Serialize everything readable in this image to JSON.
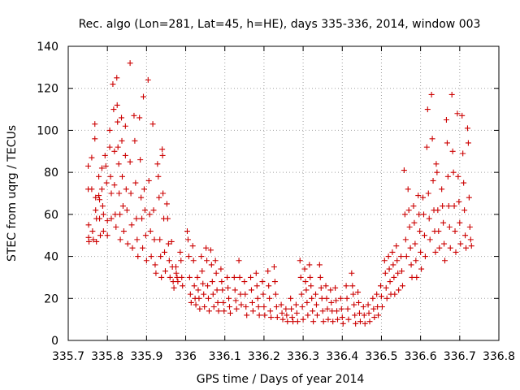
{
  "chart_data": {
    "type": "scatter",
    "title": "Rec. algo (Lon=281, Lat=45, h=HE), days 335-336, 2014, window 003",
    "xlabel": "GPS time / Days of year 2014",
    "ylabel": "STEC from uqrg / TECUs",
    "xlim": [
      335.7,
      336.8
    ],
    "ylim": [
      0,
      140
    ],
    "xticks": [
      "335.7",
      "335.8",
      "335.9",
      "336",
      "336.1",
      "336.2",
      "336.3",
      "336.4",
      "336.5",
      "336.6",
      "336.7",
      "336.8"
    ],
    "yticks": [
      "0",
      "20",
      "40",
      "60",
      "80",
      "100",
      "120",
      "140"
    ],
    "grid": true,
    "marker": "+",
    "color": "#cc0000",
    "points": [
      [
        335.751,
        83
      ],
      [
        335.751,
        72
      ],
      [
        335.752,
        55
      ],
      [
        335.752,
        49
      ],
      [
        335.753,
        47
      ],
      [
        335.76,
        87
      ],
      [
        335.76,
        72
      ],
      [
        335.762,
        52
      ],
      [
        335.764,
        48
      ],
      [
        335.768,
        103
      ],
      [
        335.768,
        96
      ],
      [
        335.77,
        68
      ],
      [
        335.77,
        62
      ],
      [
        335.772,
        58
      ],
      [
        335.772,
        47
      ],
      [
        335.778,
        78
      ],
      [
        335.778,
        69
      ],
      [
        335.78,
        67
      ],
      [
        335.78,
        58
      ],
      [
        335.782,
        50
      ],
      [
        335.786,
        82
      ],
      [
        335.786,
        72
      ],
      [
        335.788,
        64
      ],
      [
        335.79,
        60
      ],
      [
        335.79,
        52
      ],
      [
        335.794,
        88
      ],
      [
        335.796,
        83
      ],
      [
        335.798,
        75
      ],
      [
        335.8,
        57
      ],
      [
        335.8,
        50
      ],
      [
        335.806,
        100
      ],
      [
        335.806,
        92
      ],
      [
        335.808,
        78
      ],
      [
        335.81,
        70
      ],
      [
        335.81,
        58
      ],
      [
        335.814,
        122
      ],
      [
        335.816,
        110
      ],
      [
        335.818,
        90
      ],
      [
        335.818,
        74
      ],
      [
        335.82,
        60
      ],
      [
        335.822,
        54
      ],
      [
        335.824,
        125
      ],
      [
        335.825,
        112
      ],
      [
        335.826,
        104
      ],
      [
        335.827,
        92
      ],
      [
        335.829,
        84
      ],
      [
        335.83,
        70
      ],
      [
        335.832,
        60
      ],
      [
        335.833,
        48
      ],
      [
        335.836,
        106
      ],
      [
        335.837,
        95
      ],
      [
        335.838,
        78
      ],
      [
        335.84,
        64
      ],
      [
        335.842,
        52
      ],
      [
        335.846,
        102
      ],
      [
        335.846,
        88
      ],
      [
        335.848,
        72
      ],
      [
        335.85,
        62
      ],
      [
        335.852,
        46
      ],
      [
        335.858,
        132
      ],
      [
        335.858,
        85
      ],
      [
        335.86,
        70
      ],
      [
        335.862,
        55
      ],
      [
        335.864,
        44
      ],
      [
        335.868,
        107
      ],
      [
        335.87,
        95
      ],
      [
        335.872,
        75
      ],
      [
        335.874,
        58
      ],
      [
        335.876,
        48
      ],
      [
        335.878,
        40
      ],
      [
        335.882,
        106
      ],
      [
        335.884,
        86
      ],
      [
        335.886,
        68
      ],
      [
        335.888,
        58
      ],
      [
        335.89,
        44
      ],
      [
        335.892,
        116
      ],
      [
        335.894,
        72
      ],
      [
        335.896,
        62
      ],
      [
        335.898,
        50
      ],
      [
        335.9,
        38
      ],
      [
        335.904,
        124
      ],
      [
        335.906,
        76
      ],
      [
        335.908,
        60
      ],
      [
        335.91,
        52
      ],
      [
        335.912,
        40
      ],
      [
        335.916,
        103
      ],
      [
        335.918,
        62
      ],
      [
        335.92,
        48
      ],
      [
        335.922,
        36
      ],
      [
        335.924,
        32
      ],
      [
        335.928,
        84
      ],
      [
        335.93,
        78
      ],
      [
        335.932,
        68
      ],
      [
        335.934,
        48
      ],
      [
        335.936,
        40
      ],
      [
        335.938,
        30
      ],
      [
        335.94,
        91
      ],
      [
        335.941,
        88
      ],
      [
        335.942,
        70
      ],
      [
        335.944,
        58
      ],
      [
        335.946,
        42
      ],
      [
        335.948,
        33
      ],
      [
        335.952,
        65
      ],
      [
        335.954,
        58
      ],
      [
        335.956,
        46
      ],
      [
        335.958,
        38
      ],
      [
        335.96,
        30
      ],
      [
        335.964,
        47
      ],
      [
        335.966,
        35
      ],
      [
        335.968,
        28
      ],
      [
        335.97,
        25
      ],
      [
        335.975,
        35
      ],
      [
        335.976,
        32
      ],
      [
        335.978,
        30
      ],
      [
        335.98,
        28
      ],
      [
        335.986,
        42
      ],
      [
        335.988,
        38
      ],
      [
        335.99,
        30
      ],
      [
        335.992,
        26
      ],
      [
        336.004,
        52
      ],
      [
        336.006,
        48
      ],
      [
        336.008,
        40
      ],
      [
        336.01,
        30
      ],
      [
        336.012,
        22
      ],
      [
        336.014,
        18
      ],
      [
        336.018,
        45
      ],
      [
        336.02,
        38
      ],
      [
        336.022,
        26
      ],
      [
        336.024,
        20
      ],
      [
        336.026,
        17
      ],
      [
        336.03,
        30
      ],
      [
        336.032,
        24
      ],
      [
        336.034,
        20
      ],
      [
        336.036,
        15
      ],
      [
        336.04,
        40
      ],
      [
        336.042,
        33
      ],
      [
        336.044,
        27
      ],
      [
        336.046,
        22
      ],
      [
        336.048,
        16
      ],
      [
        336.052,
        44
      ],
      [
        336.054,
        38
      ],
      [
        336.056,
        26
      ],
      [
        336.058,
        20
      ],
      [
        336.06,
        14
      ],
      [
        336.064,
        43
      ],
      [
        336.066,
        36
      ],
      [
        336.068,
        28
      ],
      [
        336.07,
        22
      ],
      [
        336.072,
        16
      ],
      [
        336.076,
        38
      ],
      [
        336.078,
        32
      ],
      [
        336.08,
        24
      ],
      [
        336.082,
        18
      ],
      [
        336.084,
        14
      ],
      [
        336.09,
        34
      ],
      [
        336.092,
        28
      ],
      [
        336.094,
        24
      ],
      [
        336.096,
        18
      ],
      [
        336.098,
        14
      ],
      [
        336.106,
        30
      ],
      [
        336.108,
        25
      ],
      [
        336.11,
        20
      ],
      [
        336.112,
        16
      ],
      [
        336.114,
        13
      ],
      [
        336.124,
        30
      ],
      [
        336.126,
        24
      ],
      [
        336.128,
        19
      ],
      [
        336.13,
        15
      ],
      [
        336.136,
        38
      ],
      [
        336.138,
        30
      ],
      [
        336.14,
        22
      ],
      [
        336.142,
        17
      ],
      [
        336.15,
        28
      ],
      [
        336.152,
        22
      ],
      [
        336.154,
        16
      ],
      [
        336.156,
        12
      ],
      [
        336.166,
        30
      ],
      [
        336.168,
        24
      ],
      [
        336.17,
        18
      ],
      [
        336.172,
        14
      ],
      [
        336.18,
        32
      ],
      [
        336.182,
        26
      ],
      [
        336.184,
        20
      ],
      [
        336.186,
        16
      ],
      [
        336.188,
        12
      ],
      [
        336.196,
        28
      ],
      [
        336.198,
        22
      ],
      [
        336.2,
        16
      ],
      [
        336.202,
        12
      ],
      [
        336.21,
        33
      ],
      [
        336.212,
        26
      ],
      [
        336.214,
        20
      ],
      [
        336.216,
        14
      ],
      [
        336.218,
        11
      ],
      [
        336.226,
        35
      ],
      [
        336.228,
        28
      ],
      [
        336.23,
        22
      ],
      [
        336.232,
        16
      ],
      [
        336.234,
        11
      ],
      [
        336.244,
        17
      ],
      [
        336.246,
        13
      ],
      [
        336.248,
        10
      ],
      [
        336.256,
        15
      ],
      [
        336.258,
        12
      ],
      [
        336.26,
        9
      ],
      [
        336.268,
        20
      ],
      [
        336.27,
        15
      ],
      [
        336.272,
        11
      ],
      [
        336.274,
        9
      ],
      [
        336.282,
        17
      ],
      [
        336.284,
        13
      ],
      [
        336.286,
        9
      ],
      [
        336.292,
        38
      ],
      [
        336.294,
        30
      ],
      [
        336.296,
        22
      ],
      [
        336.298,
        16
      ],
      [
        336.3,
        10
      ],
      [
        336.304,
        34
      ],
      [
        336.306,
        28
      ],
      [
        336.308,
        24
      ],
      [
        336.31,
        18
      ],
      [
        336.312,
        12
      ],
      [
        336.316,
        36
      ],
      [
        336.318,
        30
      ],
      [
        336.32,
        26
      ],
      [
        336.322,
        20
      ],
      [
        336.324,
        14
      ],
      [
        336.326,
        9
      ],
      [
        336.332,
        22
      ],
      [
        336.334,
        17
      ],
      [
        336.336,
        12
      ],
      [
        336.342,
        36
      ],
      [
        336.344,
        30
      ],
      [
        336.346,
        25
      ],
      [
        336.348,
        20
      ],
      [
        336.35,
        14
      ],
      [
        336.352,
        9
      ],
      [
        336.358,
        26
      ],
      [
        336.36,
        20
      ],
      [
        336.362,
        15
      ],
      [
        336.364,
        10
      ],
      [
        336.37,
        24
      ],
      [
        336.372,
        18
      ],
      [
        336.374,
        14
      ],
      [
        336.376,
        9
      ],
      [
        336.382,
        25
      ],
      [
        336.384,
        19
      ],
      [
        336.386,
        14
      ],
      [
        336.388,
        10
      ],
      [
        336.396,
        20
      ],
      [
        336.398,
        15
      ],
      [
        336.4,
        11
      ],
      [
        336.402,
        8
      ],
      [
        336.41,
        26
      ],
      [
        336.412,
        20
      ],
      [
        336.414,
        15
      ],
      [
        336.416,
        10
      ],
      [
        336.424,
        32
      ],
      [
        336.426,
        26
      ],
      [
        336.428,
        22
      ],
      [
        336.43,
        17
      ],
      [
        336.432,
        12
      ],
      [
        336.434,
        8
      ],
      [
        336.44,
        23
      ],
      [
        336.442,
        18
      ],
      [
        336.444,
        13
      ],
      [
        336.446,
        9
      ],
      [
        336.454,
        16
      ],
      [
        336.456,
        12
      ],
      [
        336.458,
        8
      ],
      [
        336.466,
        17
      ],
      [
        336.468,
        13
      ],
      [
        336.47,
        9
      ],
      [
        336.478,
        20
      ],
      [
        336.48,
        15
      ],
      [
        336.482,
        11
      ],
      [
        336.488,
        22
      ],
      [
        336.49,
        16
      ],
      [
        336.492,
        12
      ],
      [
        336.498,
        26
      ],
      [
        336.5,
        21
      ],
      [
        336.502,
        16
      ],
      [
        336.508,
        38
      ],
      [
        336.51,
        32
      ],
      [
        336.512,
        25
      ],
      [
        336.514,
        20
      ],
      [
        336.518,
        40
      ],
      [
        336.52,
        34
      ],
      [
        336.522,
        28
      ],
      [
        336.524,
        22
      ],
      [
        336.528,
        42
      ],
      [
        336.53,
        36
      ],
      [
        336.532,
        30
      ],
      [
        336.534,
        22
      ],
      [
        336.538,
        45
      ],
      [
        336.54,
        38
      ],
      [
        336.542,
        32
      ],
      [
        336.544,
        24
      ],
      [
        336.55,
        40
      ],
      [
        336.552,
        33
      ],
      [
        336.554,
        26
      ],
      [
        336.558,
        81
      ],
      [
        336.56,
        60
      ],
      [
        336.562,
        48
      ],
      [
        336.564,
        40
      ],
      [
        336.568,
        72
      ],
      [
        336.57,
        62
      ],
      [
        336.572,
        54
      ],
      [
        336.574,
        44
      ],
      [
        336.576,
        36
      ],
      [
        336.578,
        30
      ],
      [
        336.582,
        64
      ],
      [
        336.584,
        56
      ],
      [
        336.586,
        46
      ],
      [
        336.588,
        38
      ],
      [
        336.59,
        30
      ],
      [
        336.594,
        69
      ],
      [
        336.596,
        60
      ],
      [
        336.598,
        52
      ],
      [
        336.6,
        42
      ],
      [
        336.602,
        34
      ],
      [
        336.606,
        68
      ],
      [
        336.608,
        60
      ],
      [
        336.61,
        50
      ],
      [
        336.612,
        40
      ],
      [
        336.616,
        92
      ],
      [
        336.618,
        110
      ],
      [
        336.62,
        70
      ],
      [
        336.622,
        58
      ],
      [
        336.624,
        48
      ],
      [
        336.628,
        117
      ],
      [
        336.63,
        96
      ],
      [
        336.632,
        76
      ],
      [
        336.634,
        62
      ],
      [
        336.636,
        52
      ],
      [
        336.638,
        42
      ],
      [
        336.64,
        84
      ],
      [
        336.642,
        80
      ],
      [
        336.644,
        62
      ],
      [
        336.646,
        52
      ],
      [
        336.648,
        44
      ],
      [
        336.654,
        72
      ],
      [
        336.656,
        64
      ],
      [
        336.658,
        56
      ],
      [
        336.66,
        46
      ],
      [
        336.662,
        38
      ],
      [
        336.666,
        105
      ],
      [
        336.668,
        94
      ],
      [
        336.67,
        78
      ],
      [
        336.672,
        64
      ],
      [
        336.674,
        54
      ],
      [
        336.676,
        44
      ],
      [
        336.68,
        117
      ],
      [
        336.682,
        90
      ],
      [
        336.684,
        80
      ],
      [
        336.686,
        64
      ],
      [
        336.688,
        52
      ],
      [
        336.69,
        42
      ],
      [
        336.694,
        108
      ],
      [
        336.696,
        78
      ],
      [
        336.698,
        66
      ],
      [
        336.7,
        56
      ],
      [
        336.702,
        46
      ],
      [
        336.706,
        107
      ],
      [
        336.708,
        89
      ],
      [
        336.71,
        75
      ],
      [
        336.712,
        62
      ],
      [
        336.714,
        50
      ],
      [
        336.716,
        44
      ],
      [
        336.72,
        101
      ],
      [
        336.722,
        94
      ],
      [
        336.724,
        68
      ],
      [
        336.726,
        54
      ],
      [
        336.728,
        48
      ],
      [
        336.73,
        45
      ]
    ]
  }
}
